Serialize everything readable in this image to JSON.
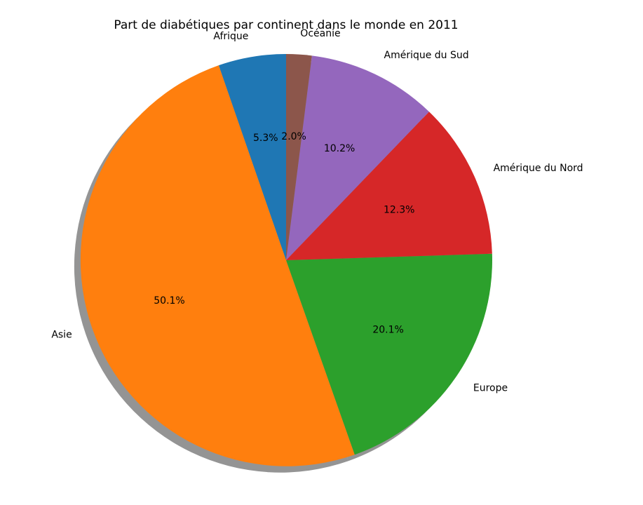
{
  "chart_data": {
    "type": "pie",
    "title": "Part de diabétiques par continent dans le monde en 2011",
    "categories": [
      "Afrique",
      "Asie",
      "Europe",
      "Amérique du Nord",
      "Amérique du Sud",
      "Océanie"
    ],
    "values": [
      5.3,
      50.1,
      20.1,
      12.3,
      10.2,
      2.0
    ],
    "value_labels": [
      "5.3%",
      "50.1%",
      "20.1%",
      "12.3%",
      "10.2%",
      "2.0%"
    ],
    "colors": [
      "#1f77b4",
      "#ff7f0e",
      "#2ca02c",
      "#d62728",
      "#9467bd",
      "#8c564b"
    ],
    "start_angle": 90,
    "direction": "counterclockwise",
    "shadow": true,
    "legend": "none"
  }
}
